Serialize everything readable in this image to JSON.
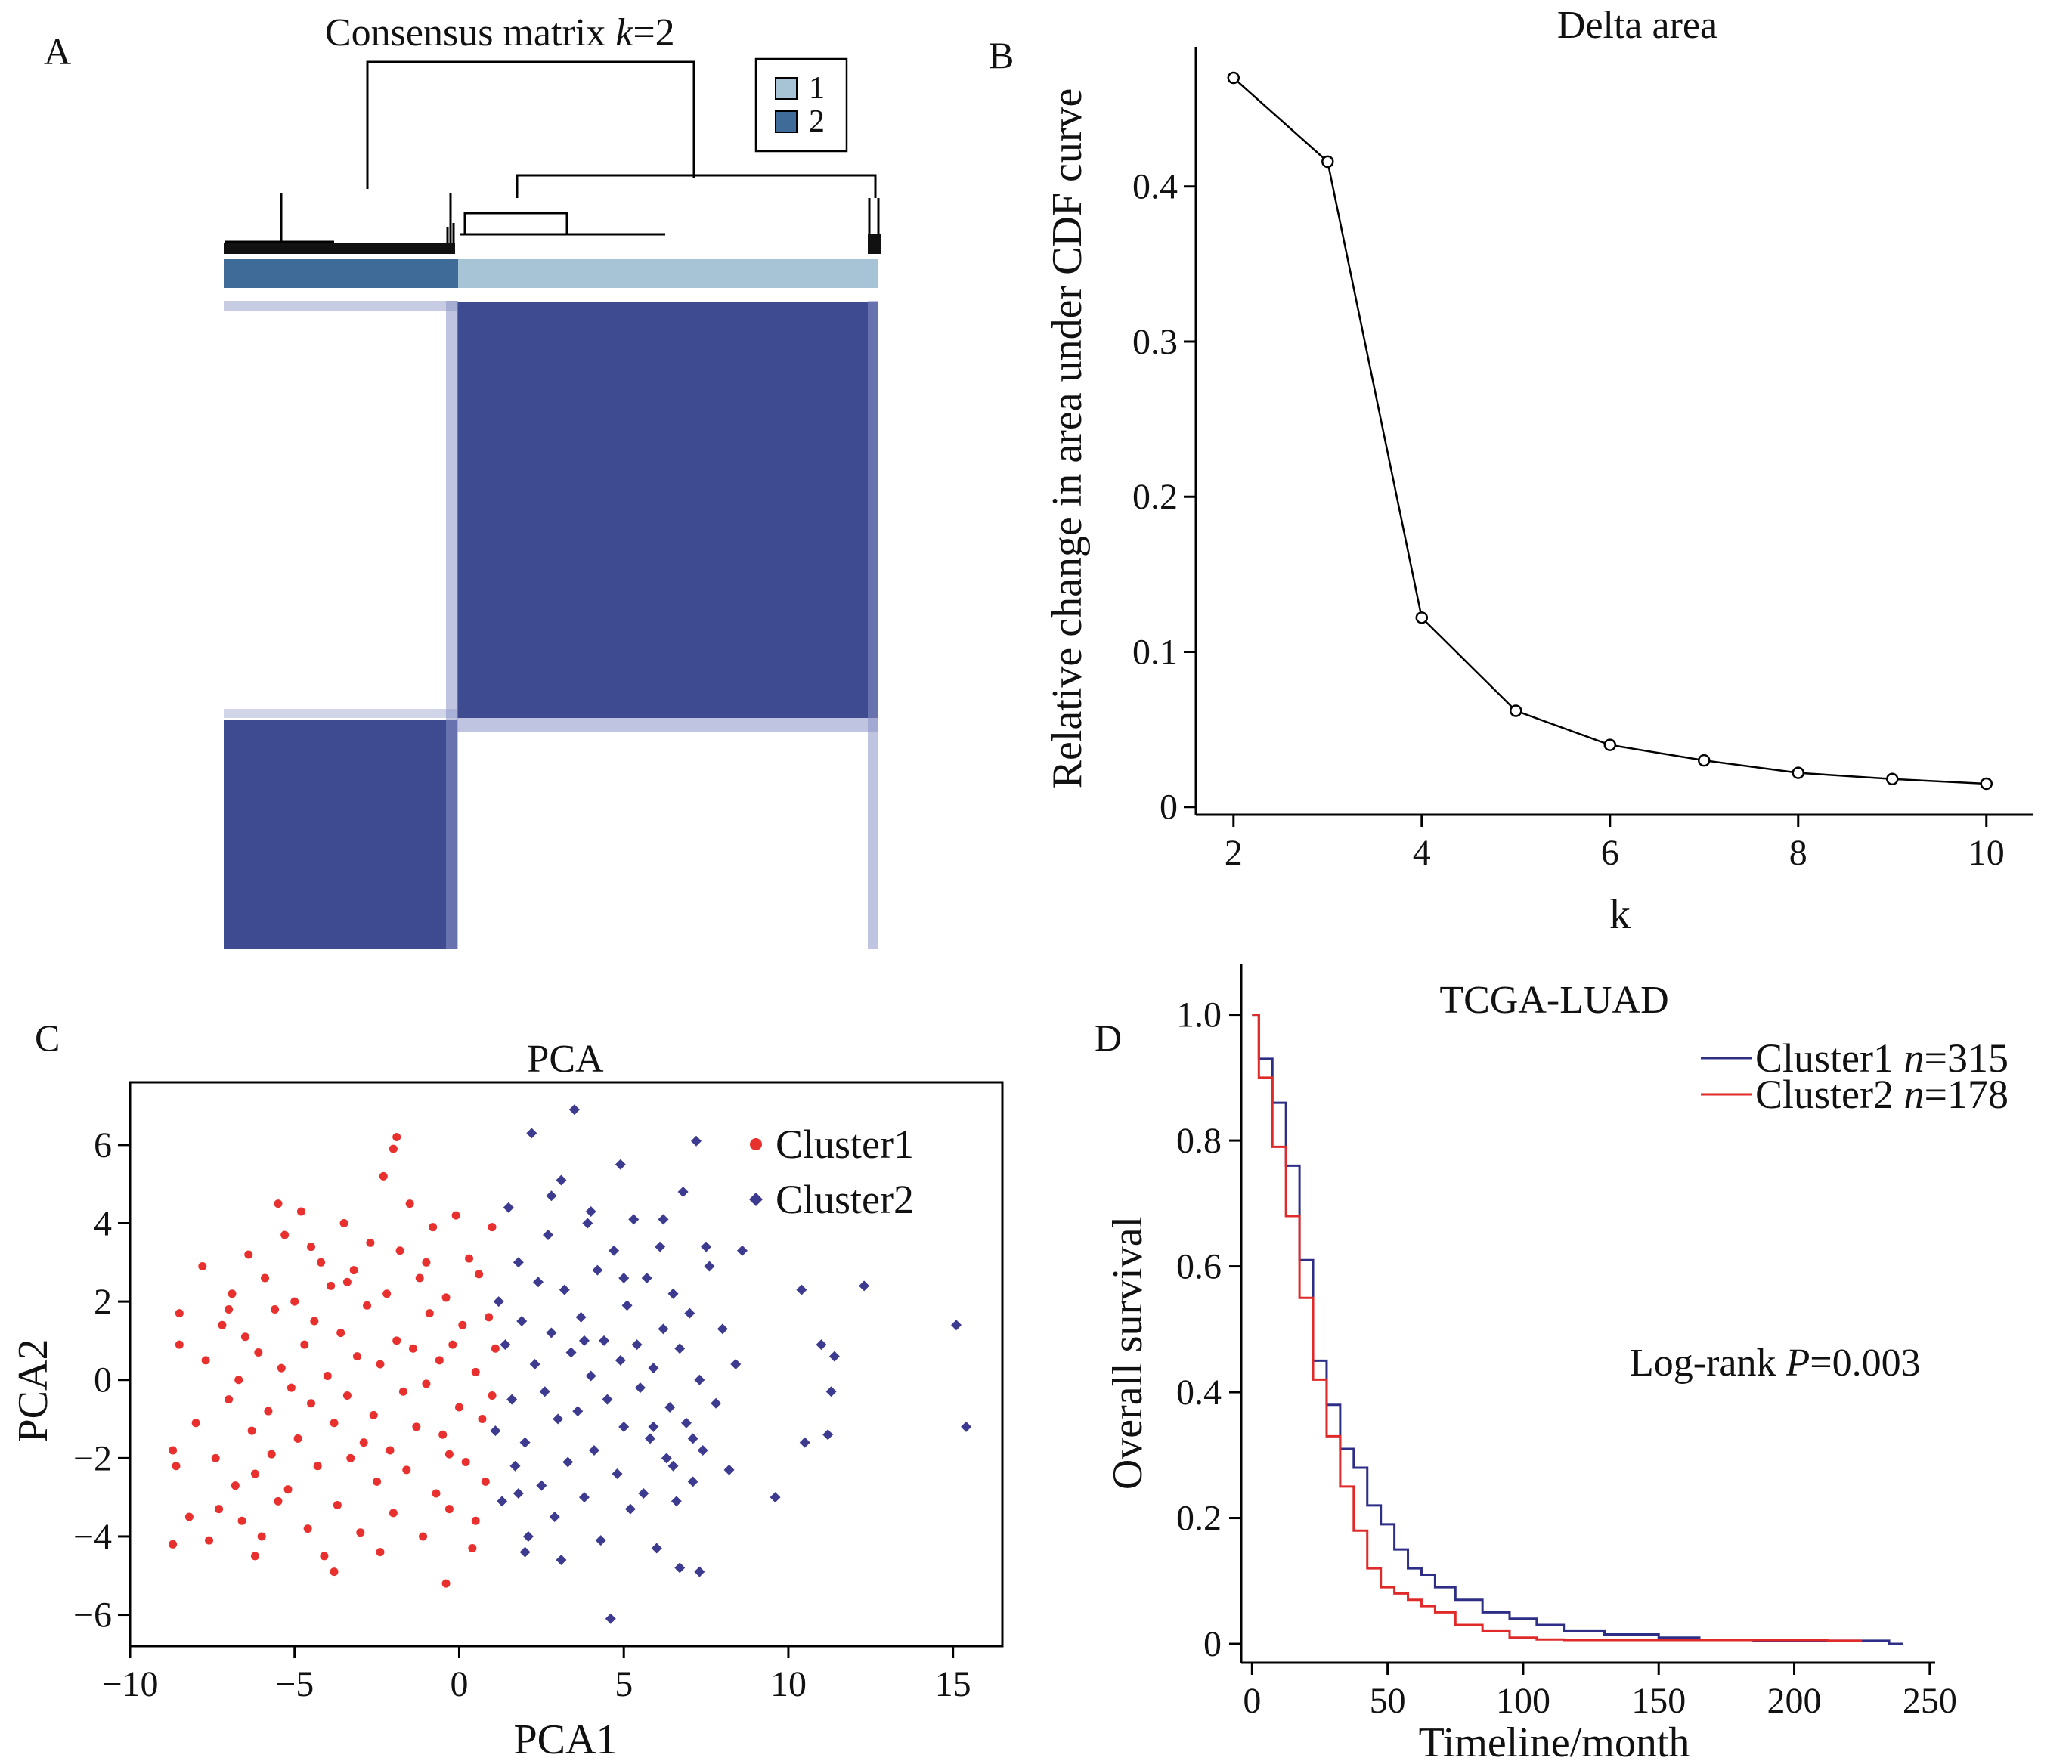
{
  "chart_data": [
    {
      "panel": "A",
      "type": "heatmap",
      "title_prefix": "Consensus matrix ",
      "title_italic": "k",
      "title_suffix": "=2",
      "legend": [
        "1",
        "2"
      ],
      "colors": {
        "cluster1": "#a6c4d6",
        "cluster2": "#3f6b99",
        "high": "#3f4b91",
        "low": "#ffffff"
      },
      "matrix": [
        [
          1,
          0
        ],
        [
          0,
          1
        ]
      ]
    },
    {
      "panel": "B",
      "type": "line",
      "title": "Delta area",
      "xlabel": "k",
      "ylabel": "Relative change in area under CDF curve",
      "x": [
        2,
        3,
        4,
        5,
        6,
        7,
        8,
        9,
        10
      ],
      "y": [
        0.47,
        0.416,
        0.122,
        0.062,
        0.04,
        0.03,
        0.022,
        0.018,
        0.015
      ],
      "xlim": [
        1.6,
        10.5
      ],
      "ylim": [
        -0.005,
        0.49
      ],
      "xticks": [
        2,
        4,
        6,
        8,
        10
      ],
      "yticks": [
        0,
        0.1,
        0.2,
        0.3,
        0.4
      ],
      "ytick_labels": [
        "0",
        "0.1",
        "0.2",
        "0.3",
        "0.4"
      ]
    },
    {
      "panel": "C",
      "type": "scatter",
      "title": "PCA",
      "xlabel": "PCA1",
      "ylabel": "PCA2",
      "xlim": [
        -10,
        16.5
      ],
      "ylim": [
        -6.8,
        7.6
      ],
      "xticks": [
        -10,
        -5,
        0,
        5,
        10,
        15
      ],
      "xtick_labels": [
        "−10",
        "−5",
        "0",
        "5",
        "10",
        "15"
      ],
      "yticks": [
        -6,
        -4,
        -2,
        0,
        2,
        4,
        6
      ],
      "ytick_labels": [
        "−6",
        "−4",
        "−2",
        "0",
        "2",
        "4",
        "6"
      ],
      "legend_position": "top-right",
      "series": [
        {
          "name": "Cluster1",
          "color": "#e8302e",
          "points": [
            [
              -8.7,
              -4.2
            ],
            [
              -8.5,
              0.9
            ],
            [
              -8.5,
              1.7
            ],
            [
              -8.6,
              -2.2
            ],
            [
              -8.2,
              -3.5
            ],
            [
              -8.0,
              -1.1
            ],
            [
              -7.8,
              2.9
            ],
            [
              -7.7,
              0.5
            ],
            [
              -7.6,
              -4.1
            ],
            [
              -7.4,
              -2.0
            ],
            [
              -7.3,
              -3.3
            ],
            [
              -7.2,
              1.4
            ],
            [
              -7.0,
              -0.5
            ],
            [
              -6.9,
              2.2
            ],
            [
              -6.8,
              -2.7
            ],
            [
              -6.7,
              0.0
            ],
            [
              -6.6,
              -3.6
            ],
            [
              -6.5,
              1.1
            ],
            [
              -6.4,
              3.2
            ],
            [
              -6.3,
              -1.3
            ],
            [
              -6.2,
              -2.4
            ],
            [
              -6.1,
              0.7
            ],
            [
              -6.0,
              -4.0
            ],
            [
              -5.9,
              2.6
            ],
            [
              -5.8,
              -0.8
            ],
            [
              -5.7,
              -1.9
            ],
            [
              -5.6,
              1.8
            ],
            [
              -5.5,
              -3.1
            ],
            [
              -5.4,
              0.3
            ],
            [
              -5.3,
              3.7
            ],
            [
              -5.2,
              -2.8
            ],
            [
              -5.1,
              -0.2
            ],
            [
              -5.0,
              2.0
            ],
            [
              -4.9,
              -1.5
            ],
            [
              -4.8,
              4.3
            ],
            [
              -4.7,
              0.9
            ],
            [
              -4.6,
              -3.8
            ],
            [
              -4.5,
              -0.6
            ],
            [
              -4.4,
              1.5
            ],
            [
              -4.3,
              -2.2
            ],
            [
              -4.2,
              3.0
            ],
            [
              -4.1,
              -4.5
            ],
            [
              -4.0,
              0.1
            ],
            [
              -3.9,
              2.4
            ],
            [
              -3.8,
              -1.1
            ],
            [
              -3.7,
              -3.2
            ],
            [
              -3.6,
              1.2
            ],
            [
              -3.5,
              4.0
            ],
            [
              -3.4,
              -0.4
            ],
            [
              -3.3,
              -2.0
            ],
            [
              -3.2,
              2.8
            ],
            [
              -3.1,
              0.6
            ],
            [
              -3.0,
              -3.9
            ],
            [
              -2.9,
              -1.6
            ],
            [
              -2.8,
              1.9
            ],
            [
              -2.7,
              3.5
            ],
            [
              -2.6,
              -0.9
            ],
            [
              -2.5,
              -2.6
            ],
            [
              -2.4,
              0.4
            ],
            [
              -2.3,
              5.2
            ],
            [
              -2.2,
              2.2
            ],
            [
              -2.1,
              -1.8
            ],
            [
              -2.0,
              -3.4
            ],
            [
              -1.9,
              1.0
            ],
            [
              -1.8,
              3.3
            ],
            [
              -1.7,
              -0.3
            ],
            [
              -1.6,
              -2.3
            ],
            [
              -1.5,
              4.5
            ],
            [
              -1.4,
              0.8
            ],
            [
              -1.3,
              -1.2
            ],
            [
              -1.2,
              2.6
            ],
            [
              -1.1,
              -4.0
            ],
            [
              -1.0,
              -0.1
            ],
            [
              -0.9,
              1.7
            ],
            [
              -0.8,
              3.9
            ],
            [
              -0.7,
              -2.9
            ],
            [
              -0.6,
              0.5
            ],
            [
              -0.5,
              -1.4
            ],
            [
              -0.4,
              2.1
            ],
            [
              -0.3,
              -3.3
            ],
            [
              -0.2,
              0.9
            ],
            [
              -0.1,
              4.2
            ],
            [
              0.0,
              -0.7
            ],
            [
              0.1,
              1.4
            ],
            [
              0.2,
              -2.1
            ],
            [
              0.3,
              3.1
            ],
            [
              0.4,
              -4.3
            ],
            [
              0.5,
              0.2
            ],
            [
              0.6,
              2.7
            ],
            [
              0.7,
              -1.0
            ],
            [
              0.8,
              -2.6
            ],
            [
              0.9,
              1.6
            ],
            [
              1.0,
              -0.4
            ],
            [
              1.0,
              3.9
            ],
            [
              1.1,
              0.8
            ],
            [
              -1.9,
              6.2
            ],
            [
              -2.0,
              5.9
            ],
            [
              -5.5,
              4.5
            ],
            [
              -6.2,
              -4.5
            ],
            [
              -3.8,
              -4.9
            ],
            [
              -0.4,
              -5.2
            ],
            [
              -2.4,
              -4.4
            ],
            [
              -8.7,
              -1.8
            ],
            [
              -7.0,
              1.8
            ],
            [
              -4.5,
              3.4
            ],
            [
              -3.4,
              2.5
            ],
            [
              -1.0,
              3.0
            ],
            [
              -0.3,
              -1.9
            ],
            [
              0.5,
              -3.6
            ]
          ]
        },
        {
          "name": "Cluster2",
          "color": "#3d3b90",
          "points": [
            [
              1.1,
              -1.3
            ],
            [
              1.2,
              2.0
            ],
            [
              1.3,
              -3.1
            ],
            [
              1.4,
              0.9
            ],
            [
              1.5,
              4.4
            ],
            [
              1.6,
              -0.5
            ],
            [
              1.7,
              -2.2
            ],
            [
              1.8,
              3.0
            ],
            [
              1.9,
              1.5
            ],
            [
              2.0,
              -1.6
            ],
            [
              2.1,
              -4.0
            ],
            [
              2.2,
              6.3
            ],
            [
              2.3,
              0.4
            ],
            [
              2.4,
              2.5
            ],
            [
              2.5,
              -2.7
            ],
            [
              2.6,
              -0.3
            ],
            [
              2.7,
              3.7
            ],
            [
              2.8,
              1.2
            ],
            [
              2.9,
              -3.5
            ],
            [
              3.0,
              -1.0
            ],
            [
              3.1,
              5.1
            ],
            [
              3.2,
              2.3
            ],
            [
              3.3,
              -2.1
            ],
            [
              3.4,
              0.7
            ],
            [
              3.5,
              6.9
            ],
            [
              3.6,
              -0.8
            ],
            [
              3.7,
              1.6
            ],
            [
              3.8,
              -3.0
            ],
            [
              3.9,
              4.0
            ],
            [
              4.0,
              0.1
            ],
            [
              4.1,
              -1.8
            ],
            [
              4.2,
              2.8
            ],
            [
              4.3,
              -4.1
            ],
            [
              4.4,
              1.0
            ],
            [
              4.5,
              -0.5
            ],
            [
              4.6,
              -6.1
            ],
            [
              4.7,
              3.3
            ],
            [
              4.8,
              -2.4
            ],
            [
              4.9,
              0.5
            ],
            [
              5.0,
              -1.2
            ],
            [
              5.1,
              1.9
            ],
            [
              5.2,
              -3.3
            ],
            [
              5.3,
              4.1
            ],
            [
              5.4,
              0.9
            ],
            [
              5.5,
              -0.2
            ],
            [
              5.6,
              -2.9
            ],
            [
              5.7,
              2.6
            ],
            [
              5.8,
              -1.5
            ],
            [
              5.9,
              0.3
            ],
            [
              6.0,
              -4.3
            ],
            [
              6.1,
              3.4
            ],
            [
              6.2,
              1.3
            ],
            [
              6.3,
              -2.0
            ],
            [
              6.4,
              -0.7
            ],
            [
              6.5,
              2.2
            ],
            [
              6.6,
              -3.1
            ],
            [
              6.7,
              0.8
            ],
            [
              6.8,
              4.8
            ],
            [
              6.9,
              -1.1
            ],
            [
              7.0,
              1.7
            ],
            [
              7.1,
              -2.6
            ],
            [
              7.2,
              6.1
            ],
            [
              7.3,
              0.0
            ],
            [
              7.4,
              -1.8
            ],
            [
              7.5,
              3.4
            ],
            [
              7.6,
              2.9
            ],
            [
              7.8,
              -0.6
            ],
            [
              8.0,
              1.3
            ],
            [
              8.2,
              -2.3
            ],
            [
              8.4,
              0.4
            ],
            [
              8.6,
              3.3
            ],
            [
              9.6,
              -3.0
            ],
            [
              10.4,
              2.3
            ],
            [
              10.5,
              -1.6
            ],
            [
              11.0,
              0.9
            ],
            [
              11.2,
              -1.4
            ],
            [
              11.4,
              0.6
            ],
            [
              12.3,
              2.4
            ],
            [
              15.1,
              1.4
            ],
            [
              15.4,
              -1.2
            ],
            [
              11.3,
              -0.3
            ],
            [
              7.3,
              -4.9
            ],
            [
              6.7,
              -4.8
            ],
            [
              3.1,
              -4.6
            ],
            [
              2.0,
              -4.4
            ],
            [
              4.0,
              4.3
            ],
            [
              2.8,
              4.7
            ],
            [
              1.8,
              -2.9
            ],
            [
              5.9,
              -1.2
            ],
            [
              6.5,
              -2.2
            ],
            [
              7.1,
              -1.5
            ],
            [
              5.0,
              2.6
            ],
            [
              3.8,
              1.0
            ],
            [
              6.2,
              4.1
            ],
            [
              4.9,
              5.5
            ]
          ]
        }
      ]
    },
    {
      "panel": "D",
      "type": "line",
      "title": "TCGA-LUAD",
      "xlabel": "Timeline/month",
      "ylabel": "Overall survival",
      "xlim": [
        -4,
        252
      ],
      "ylim": [
        -0.03,
        1.08
      ],
      "xticks": [
        0,
        50,
        100,
        150,
        200,
        250
      ],
      "yticks": [
        0,
        0.2,
        0.4,
        0.6,
        0.8,
        1.0
      ],
      "ytick_labels": [
        "0",
        "0.2",
        "0.4",
        "0.6",
        "0.8",
        "1.0"
      ],
      "annotation_prefix": "Log-rank ",
      "annotation_italic": "P",
      "annotation_suffix": "=0.003",
      "legend_position": "top-right",
      "series": [
        {
          "name": "Cluster1",
          "n_label": "n",
          "n_value": "=315",
          "color": "#2e2e86",
          "x": [
            0,
            5,
            10,
            15,
            20,
            25,
            30,
            35,
            40,
            45,
            50,
            55,
            60,
            65,
            70,
            80,
            90,
            100,
            110,
            120,
            140,
            160,
            170,
            200,
            230,
            240
          ],
          "y": [
            1.0,
            0.93,
            0.86,
            0.76,
            0.61,
            0.45,
            0.38,
            0.31,
            0.28,
            0.22,
            0.19,
            0.15,
            0.12,
            0.11,
            0.09,
            0.07,
            0.05,
            0.04,
            0.03,
            0.02,
            0.015,
            0.01,
            0.006,
            0.005,
            0.005,
            0.0
          ]
        },
        {
          "name": "Cluster2",
          "n_label": "n",
          "n_value": "=178",
          "color": "#e02a2a",
          "x": [
            0,
            5,
            10,
            15,
            20,
            25,
            30,
            35,
            40,
            45,
            50,
            55,
            60,
            65,
            70,
            80,
            90,
            100,
            110,
            120,
            140,
            160,
            200,
            225
          ],
          "y": [
            1.0,
            0.9,
            0.79,
            0.68,
            0.55,
            0.42,
            0.33,
            0.25,
            0.18,
            0.12,
            0.09,
            0.08,
            0.07,
            0.06,
            0.05,
            0.03,
            0.02,
            0.01,
            0.007,
            0.006,
            0.006,
            0.006,
            0.006,
            0.005
          ]
        }
      ]
    }
  ]
}
